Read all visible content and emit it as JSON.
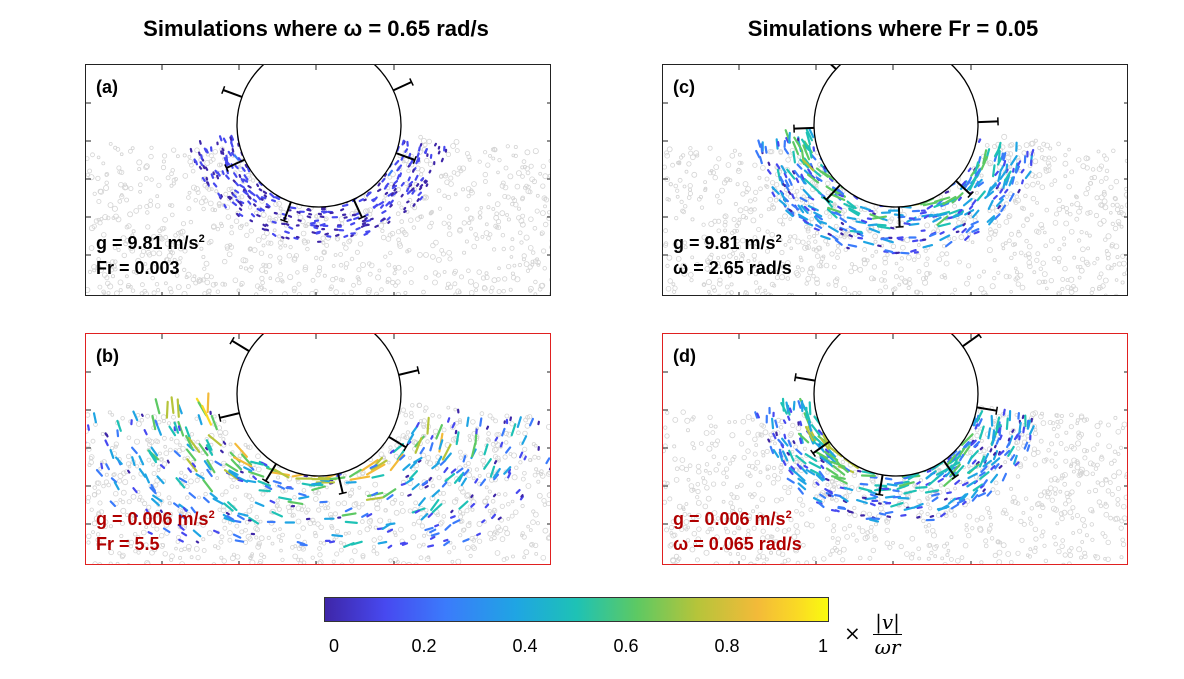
{
  "titles": {
    "left": "Simulations where ω = 0.65 rad/s",
    "right": "Simulations where Fr = 0.05"
  },
  "panels": [
    {
      "label": "(a)",
      "g_value": "g = 9.81 m/s",
      "g_exp": "2",
      "second_line": "Fr = 0.003",
      "flow": "low"
    },
    {
      "label": "(b)",
      "g_value": "g = 0.006 m/s",
      "g_exp": "2",
      "second_line": "Fr = 5.5",
      "flow": "high"
    },
    {
      "label": "(c)",
      "g_value": "g = 9.81 m/s",
      "g_exp": "2",
      "second_line": "ω = 2.65 rad/s",
      "flow": "mid"
    },
    {
      "label": "(d)",
      "g_value": "g = 0.006 m/s",
      "g_exp": "2",
      "second_line": "ω = 0.065 rad/s",
      "flow": "mid"
    }
  ],
  "colorbar": {
    "ticks": [
      "0",
      "0.2",
      "0.4",
      "0.6",
      "0.8",
      "1"
    ],
    "tick_values": [
      0,
      0.2,
      0.4,
      0.6,
      0.8,
      1
    ],
    "times": "×",
    "numerator": "|v|",
    "denominator": "ωr",
    "colormap": [
      "#3e26a8",
      "#4749f0",
      "#3b7bfb",
      "#1fa5e3",
      "#1ec2b5",
      "#5dc963",
      "#b6c43a",
      "#f3ba39",
      "#fada24",
      "#f9fb0e"
    ]
  },
  "colors": {
    "normal_border": "#222222",
    "highlight_border": "#e02020",
    "highlight_text": "#b00000",
    "grain": "#d4d4d4",
    "wheel": "#000000"
  }
}
